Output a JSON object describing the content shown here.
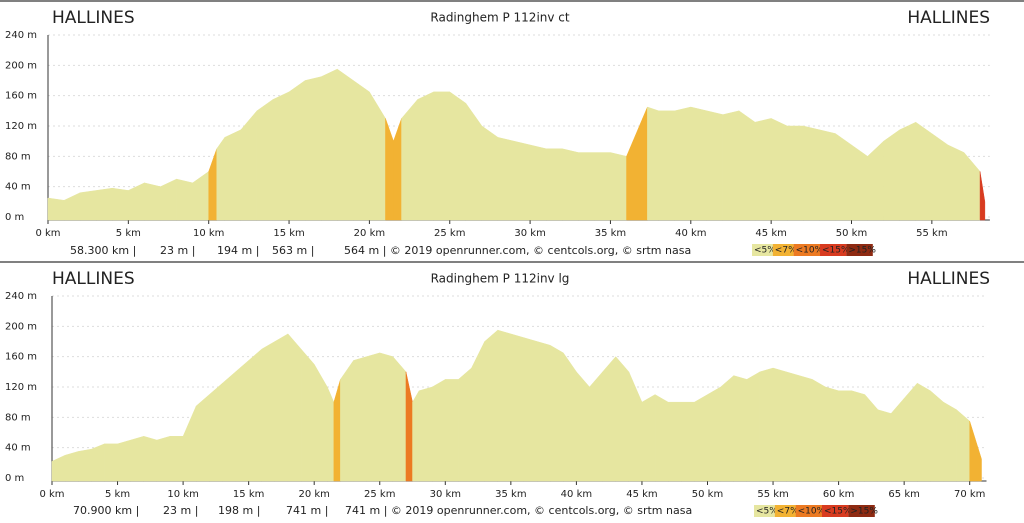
{
  "chart_data": [
    {
      "type": "area",
      "title": "Radinghem P 112inv ct",
      "start_label": "HALLINES",
      "end_label": "HALLINES",
      "x": [
        0,
        1,
        2,
        3,
        4,
        5,
        6,
        7,
        8,
        9,
        10,
        10.5,
        11,
        12,
        13,
        14,
        15,
        16,
        17,
        18,
        19,
        20,
        21,
        21.5,
        22,
        23,
        24,
        25,
        26,
        27,
        28,
        29,
        30,
        31,
        32,
        33,
        34,
        35,
        36,
        37,
        37.3,
        38,
        39,
        40,
        41,
        42,
        43,
        44,
        45,
        46,
        47,
        48,
        49,
        50,
        51,
        52,
        53,
        54,
        55,
        56,
        57,
        58,
        58.3
      ],
      "values": [
        25,
        22,
        32,
        35,
        38,
        35,
        45,
        40,
        50,
        45,
        60,
        90,
        105,
        115,
        140,
        155,
        165,
        180,
        185,
        195,
        180,
        165,
        130,
        100,
        130,
        155,
        165,
        165,
        150,
        120,
        105,
        100,
        95,
        90,
        90,
        85,
        85,
        85,
        80,
        130,
        145,
        140,
        140,
        145,
        140,
        135,
        140,
        125,
        130,
        120,
        120,
        115,
        110,
        95,
        80,
        100,
        115,
        125,
        110,
        95,
        85,
        60,
        20
      ],
      "xlim": [
        0,
        58.3
      ],
      "ylim": [
        0,
        240
      ],
      "xticks": [
        {
          "value": 0,
          "label": "0 km"
        },
        {
          "value": 5,
          "label": "5 km"
        },
        {
          "value": 10,
          "label": "10 km"
        },
        {
          "value": 15,
          "label": "15 km"
        },
        {
          "value": 20,
          "label": "20 km"
        },
        {
          "value": 25,
          "label": "25 km"
        },
        {
          "value": 30,
          "label": "30 km"
        },
        {
          "value": 35,
          "label": "35 km"
        },
        {
          "value": 40,
          "label": "40 km"
        },
        {
          "value": 45,
          "label": "45 km"
        },
        {
          "value": 50,
          "label": "50 km"
        },
        {
          "value": 55,
          "label": "55 km"
        }
      ],
      "yticks": [
        {
          "value": 0,
          "label": "0 m"
        },
        {
          "value": 40,
          "label": "40 m"
        },
        {
          "value": 80,
          "label": "80 m"
        },
        {
          "value": 120,
          "label": "120 m"
        },
        {
          "value": 160,
          "label": "160 m"
        },
        {
          "value": 200,
          "label": "200 m"
        },
        {
          "value": 240,
          "label": "240 m"
        }
      ],
      "grid": true,
      "stats": [
        "58.300 km |",
        "23 m |",
        "194 m |",
        "563 m |",
        "564 m | © 2019 openrunner.com, © centcols.org, © srtm nasa"
      ],
      "grade_classes": [
        {
          "label": "<5%",
          "max": 5,
          "color": "#e6e6a0"
        },
        {
          "label": "<7%",
          "max": 7,
          "color": "#f2b233"
        },
        {
          "label": "<10%",
          "max": 10,
          "color": "#ec7a22"
        },
        {
          "label": "<15%",
          "max": 15,
          "color": "#d83b20"
        },
        {
          "label": ">15%",
          "max": 1000,
          "color": "#8e2a12"
        }
      ]
    },
    {
      "type": "area",
      "title": "Radinghem P 112inv lg",
      "start_label": "HALLINES",
      "end_label": "HALLINES",
      "x": [
        0,
        1,
        2,
        3,
        4,
        5,
        6,
        7,
        8,
        9,
        10,
        11,
        12,
        13,
        14,
        15,
        16,
        17,
        18,
        19,
        20,
        21,
        21.5,
        22,
        23,
        24,
        25,
        26,
        27,
        27.5,
        28,
        29,
        30,
        31,
        32,
        33,
        34,
        35,
        36,
        37,
        38,
        39,
        40,
        41,
        42,
        43,
        44,
        45,
        46,
        47,
        48,
        49,
        50,
        51,
        52,
        53,
        54,
        55,
        56,
        57,
        58,
        59,
        60,
        61,
        62,
        63,
        64,
        65,
        66,
        67,
        68,
        69,
        70,
        70.9
      ],
      "values": [
        22,
        30,
        35,
        38,
        45,
        45,
        50,
        55,
        50,
        55,
        55,
        95,
        110,
        125,
        140,
        155,
        170,
        180,
        190,
        170,
        150,
        120,
        100,
        130,
        155,
        160,
        165,
        160,
        140,
        100,
        115,
        120,
        130,
        130,
        145,
        180,
        195,
        190,
        185,
        180,
        175,
        165,
        140,
        120,
        140,
        160,
        140,
        100,
        110,
        100,
        100,
        100,
        110,
        120,
        135,
        130,
        140,
        145,
        140,
        135,
        130,
        120,
        115,
        115,
        110,
        90,
        85,
        105,
        125,
        115,
        100,
        90,
        75,
        25
      ],
      "xlim": [
        0,
        70.9
      ],
      "ylim": [
        0,
        240
      ],
      "xticks": [
        {
          "value": 0,
          "label": "0 km"
        },
        {
          "value": 5,
          "label": "5 km"
        },
        {
          "value": 10,
          "label": "10 km"
        },
        {
          "value": 15,
          "label": "15 km"
        },
        {
          "value": 20,
          "label": "20 km"
        },
        {
          "value": 25,
          "label": "25 km"
        },
        {
          "value": 30,
          "label": "30 km"
        },
        {
          "value": 35,
          "label": "35 km"
        },
        {
          "value": 40,
          "label": "40 km"
        },
        {
          "value": 45,
          "label": "45 km"
        },
        {
          "value": 50,
          "label": "50 km"
        },
        {
          "value": 55,
          "label": "55 km"
        },
        {
          "value": 60,
          "label": "60 km"
        },
        {
          "value": 65,
          "label": "65 km"
        },
        {
          "value": 70,
          "label": "70 km"
        }
      ],
      "yticks": [
        {
          "value": 0,
          "label": "0 m"
        },
        {
          "value": 40,
          "label": "40 m"
        },
        {
          "value": 80,
          "label": "80 m"
        },
        {
          "value": 120,
          "label": "120 m"
        },
        {
          "value": 160,
          "label": "160 m"
        },
        {
          "value": 200,
          "label": "200 m"
        },
        {
          "value": 240,
          "label": "240 m"
        }
      ],
      "grid": true,
      "stats": [
        "70.900 km |",
        "23 m |",
        "198 m |",
        "741 m |",
        "741 m | © 2019 openrunner.com, © centcols.org, © srtm nasa"
      ],
      "grade_classes": [
        {
          "label": "<5%",
          "max": 5,
          "color": "#e6e6a0"
        },
        {
          "label": "<7%",
          "max": 7,
          "color": "#f2b233"
        },
        {
          "label": "<10%",
          "max": 10,
          "color": "#ec7a22"
        },
        {
          "label": "<15%",
          "max": 15,
          "color": "#d83b20"
        },
        {
          "label": ">15%",
          "max": 1000,
          "color": "#8e2a12"
        }
      ]
    }
  ]
}
